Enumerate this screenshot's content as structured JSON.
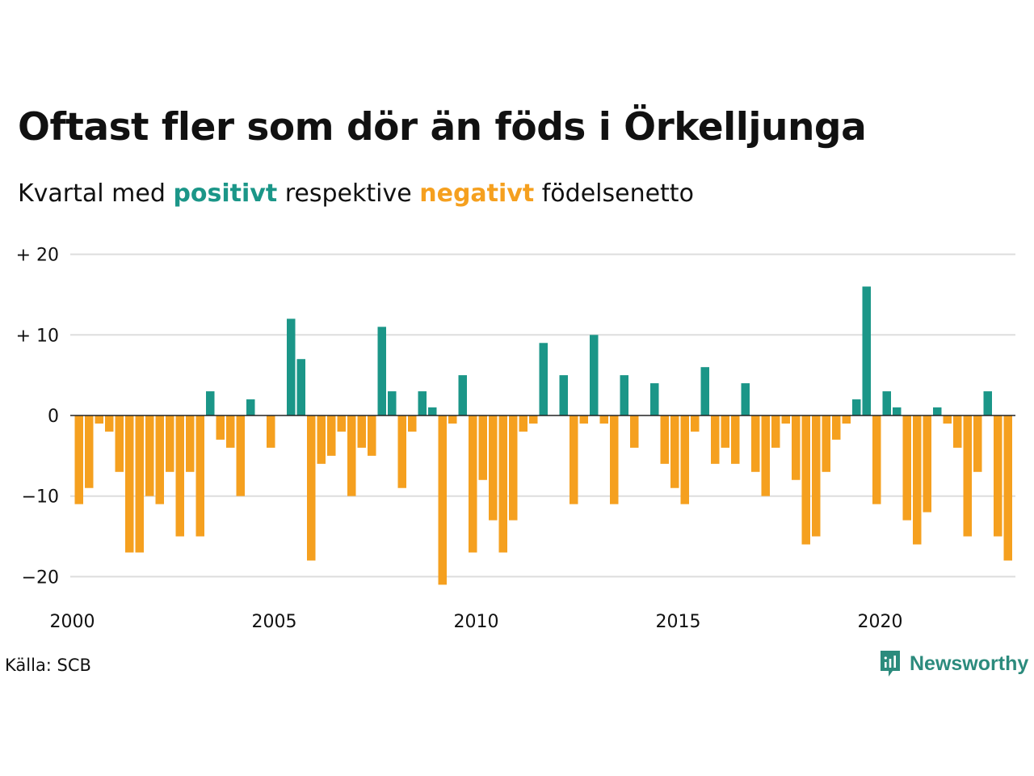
{
  "title": "Oftast fler som dör än föds i Örkelljunga",
  "subtitle": {
    "prefix": "Kvartal med",
    "positive": "positivt",
    "middle": "respektive",
    "negative": "negativt",
    "suffix": "födelsenetto"
  },
  "colors": {
    "positive": "#1b9688",
    "negative": "#f5a01f",
    "grid": "#dddddd",
    "text": "#111111"
  },
  "source": "Källa: SCB",
  "brand": {
    "name": "Newsworthy",
    "icon": "newsworthy-logo-icon",
    "color": "#2c8b7d"
  },
  "chart_data": {
    "type": "bar",
    "title": "Oftast fler som dör än föds i Örkelljunga",
    "subtitle": "Kvartal med positivt respektive negativt födelsenetto",
    "xlabel": "",
    "ylabel": "",
    "x_start": 2000,
    "periods_per_year": 4,
    "x_ticks": [
      "2000",
      "2005",
      "2010",
      "2015",
      "2020"
    ],
    "y_ticks": [
      {
        "value": 20,
        "label": "+ 20"
      },
      {
        "value": 10,
        "label": "+ 10"
      },
      {
        "value": 0,
        "label": "0"
      },
      {
        "value": -10,
        "label": "−10"
      },
      {
        "value": -20,
        "label": "−20"
      }
    ],
    "ylim": [
      -22,
      22
    ],
    "grid": true,
    "legend": "none",
    "values": [
      -11,
      -9,
      -1,
      -2,
      -7,
      -17,
      -17,
      -10,
      -11,
      -7,
      -15,
      -7,
      -15,
      3,
      -3,
      -4,
      -10,
      2,
      0,
      -4,
      0,
      12,
      7,
      -18,
      -6,
      -5,
      -2,
      -10,
      -4,
      -5,
      11,
      3,
      -9,
      -2,
      3,
      1,
      -21,
      -1,
      5,
      -17,
      -8,
      -13,
      -17,
      -13,
      -2,
      -1,
      9,
      0,
      5,
      -11,
      -1,
      10,
      -1,
      -11,
      5,
      -4,
      0,
      4,
      -6,
      -9,
      -11,
      -2,
      6,
      -6,
      -4,
      -6,
      4,
      -7,
      -10,
      -4,
      -1,
      -8,
      -16,
      -15,
      -7,
      -3,
      -1,
      2,
      16,
      -11,
      3,
      1,
      -13,
      -16,
      -12,
      1,
      -1,
      -4,
      -15,
      -7,
      3,
      -15,
      -18
    ]
  }
}
